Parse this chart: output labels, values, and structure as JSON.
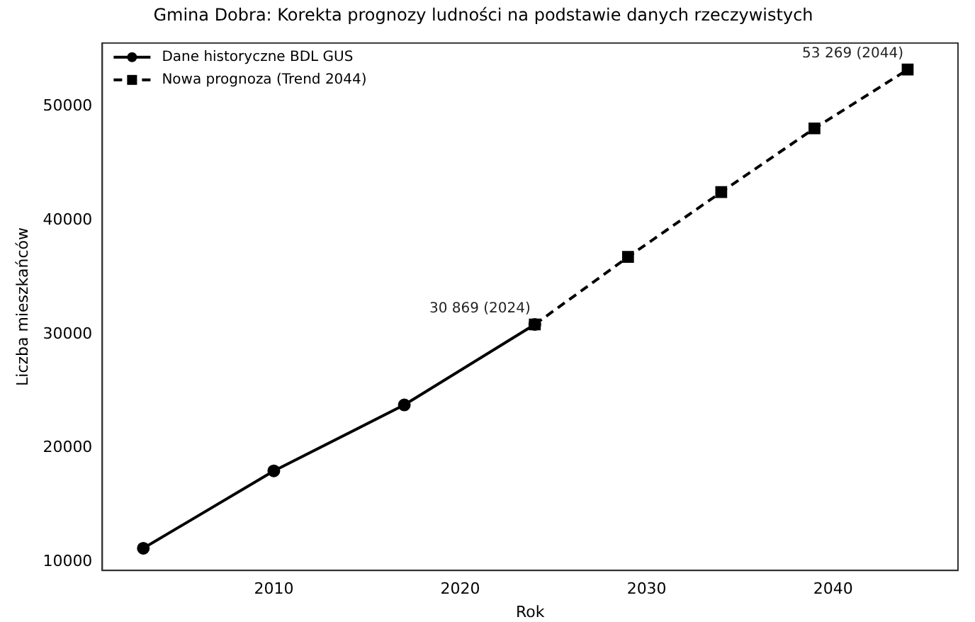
{
  "chart_data": {
    "type": "line",
    "title": "Gmina Dobra: Korekta prognozy ludności na podstawie danych rzeczywistych",
    "xlabel": "Rok",
    "ylabel": "Liczba mieszkańców",
    "xlim": [
      2000.8,
      2046.7
    ],
    "xticks": [
      2010,
      2020,
      2030,
      2040
    ],
    "ylim": [
      9250,
      55600
    ],
    "yticks": [
      10000,
      20000,
      30000,
      40000,
      50000
    ],
    "grid": false,
    "legend": "top left",
    "series": [
      {
        "name": "Dane historyczne BDL GUS",
        "color": "#000000",
        "x": [
          2003,
          2010,
          2017,
          2024
        ],
        "values": [
          11200,
          18000,
          23800,
          30869
        ],
        "marker": "circle",
        "line_style": "solid"
      },
      {
        "name": "Nowa prognoza (Trend 2044)",
        "color": "#000000",
        "x": [
          2024,
          2029,
          2034,
          2039,
          2044
        ],
        "values": [
          30869,
          36800,
          42500,
          48100,
          53269
        ],
        "marker": "square",
        "line_style": "dashed"
      }
    ],
    "annotations": [
      {
        "text": "30 869 (2024)",
        "x": 2024,
        "y": 30869
      },
      {
        "text": "53 269 (2044)",
        "x": 2044,
        "y": 53269
      }
    ]
  }
}
